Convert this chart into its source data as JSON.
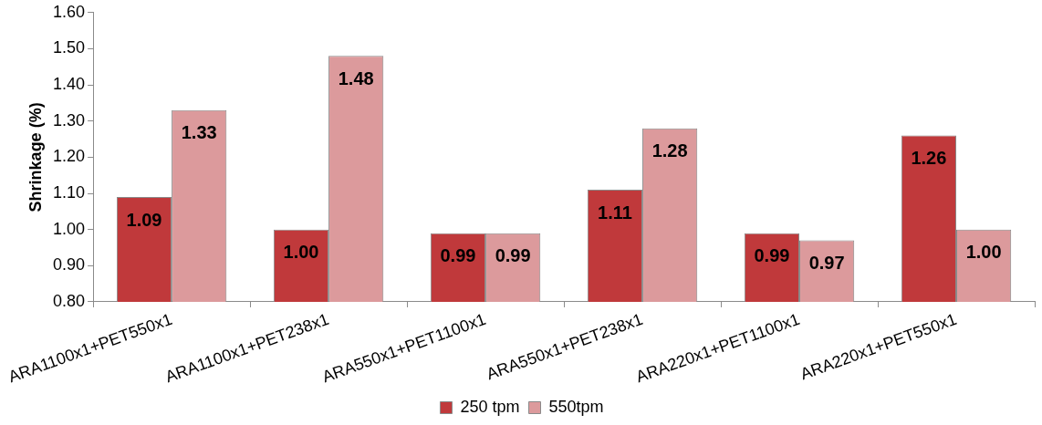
{
  "chart_data": {
    "type": "bar",
    "ylabel": "Shrinkage (%)",
    "categories": [
      "ARA1100x1+PET550x1",
      "ARA1100x1+PET238x1",
      "ARA550x1+PET1100x1",
      "ARA550x1+PET238x1",
      "ARA220x1+PET1100x1",
      "ARA220x1+PET550x1"
    ],
    "series": [
      {
        "name": "250 tpm",
        "color": "#c0393b",
        "values": [
          1.09,
          1.0,
          0.99,
          1.11,
          0.99,
          1.26
        ],
        "value_labels": [
          "1.09",
          "1.00",
          "0.99",
          "1.11",
          "0.99",
          "1.26"
        ]
      },
      {
        "name": "550tpm",
        "color": "#dc9a9c",
        "values": [
          1.33,
          1.48,
          0.99,
          1.28,
          0.97,
          1.0
        ],
        "value_labels": [
          "1.33",
          "1.48",
          "0.99",
          "1.28",
          "0.97",
          "1.00"
        ]
      }
    ],
    "ylim": [
      0.8,
      1.6
    ],
    "yticks": [
      {
        "value": 0.8,
        "label": "0.80"
      },
      {
        "value": 0.9,
        "label": "0.90"
      },
      {
        "value": 1.0,
        "label": "1.00"
      },
      {
        "value": 1.1,
        "label": "1.10"
      },
      {
        "value": 1.2,
        "label": "1.20"
      },
      {
        "value": 1.3,
        "label": "1.30"
      },
      {
        "value": 1.4,
        "label": "1.40"
      },
      {
        "value": 1.5,
        "label": "1.50"
      },
      {
        "value": 1.6,
        "label": "1.60"
      }
    ],
    "grid": false,
    "legend": "bottom"
  }
}
